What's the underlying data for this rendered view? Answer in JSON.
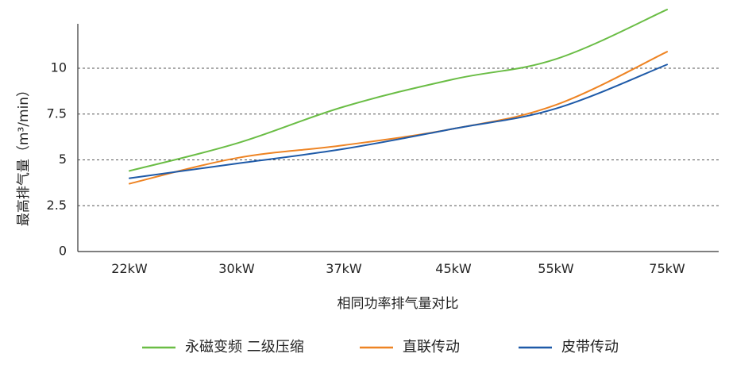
{
  "chart_data": {
    "type": "line",
    "categories": [
      "22kW",
      "30kW",
      "37kW",
      "45kW",
      "55kW",
      "75kW"
    ],
    "ylabel": "最高排气量（m³/min）",
    "xlabel": "相同功率排气量对比",
    "ylim": [
      0,
      12.5
    ],
    "yticks": [
      0,
      2.5,
      5,
      7.5,
      10
    ],
    "yticks_text": [
      "0",
      "2.5",
      "5",
      "7.5",
      "10"
    ],
    "grid": "horizontal-dashed",
    "legend_position": "bottom",
    "series": [
      {
        "name": "永磁变频 二级压缩",
        "color": "#6abd45",
        "values": [
          4.4,
          5.9,
          7.9,
          9.4,
          10.5,
          13.2
        ]
      },
      {
        "name": "直联传动",
        "color": "#ee8424",
        "values": [
          3.7,
          5.1,
          5.8,
          6.7,
          8.0,
          10.9
        ]
      },
      {
        "name": "皮带传动",
        "color": "#1e5aa8",
        "values": [
          4.0,
          4.8,
          5.6,
          6.7,
          7.8,
          10.2
        ]
      }
    ]
  }
}
